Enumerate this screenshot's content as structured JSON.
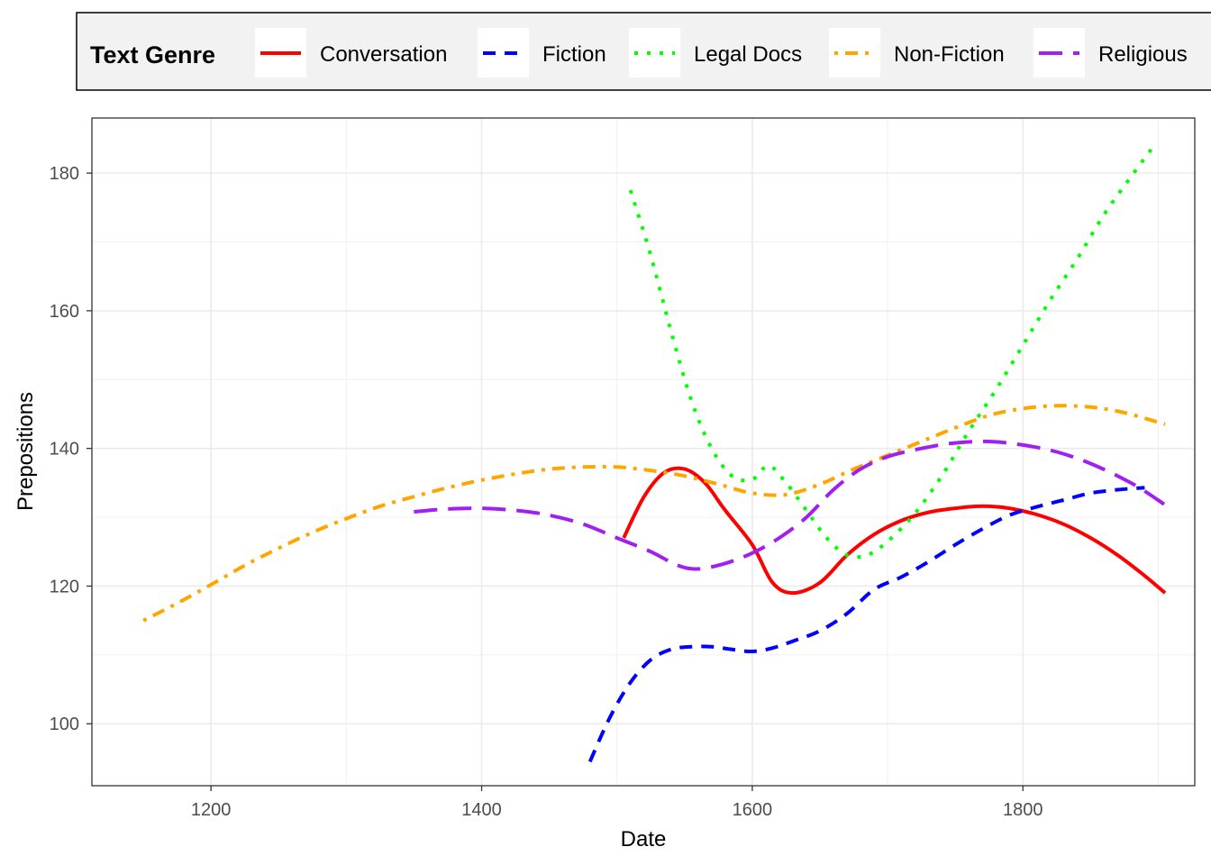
{
  "chart_data": {
    "type": "line",
    "xlabel": "Date",
    "ylabel": "Prepositions",
    "xlim": [
      1112,
      1927
    ],
    "ylim": [
      91,
      188
    ],
    "x_ticks": [
      1200,
      1400,
      1600,
      1800
    ],
    "y_ticks": [
      100,
      120,
      140,
      160,
      180
    ],
    "grid": true,
    "legend": {
      "title": "Text Genre",
      "placement": "top"
    },
    "series": [
      {
        "name": "Conversation",
        "color": "#ff0000",
        "dash": "solid",
        "points": [
          [
            1505,
            127
          ],
          [
            1520,
            133
          ],
          [
            1535,
            136.5
          ],
          [
            1550,
            137
          ],
          [
            1565,
            135
          ],
          [
            1580,
            131
          ],
          [
            1600,
            126
          ],
          [
            1615,
            120.5
          ],
          [
            1630,
            119
          ],
          [
            1650,
            120.5
          ],
          [
            1670,
            124.5
          ],
          [
            1690,
            127.5
          ],
          [
            1710,
            129.5
          ],
          [
            1730,
            130.7
          ],
          [
            1750,
            131.3
          ],
          [
            1770,
            131.6
          ],
          [
            1790,
            131.3
          ],
          [
            1810,
            130.4
          ],
          [
            1830,
            129
          ],
          [
            1850,
            127
          ],
          [
            1870,
            124.5
          ],
          [
            1890,
            121.5
          ],
          [
            1905,
            119
          ]
        ]
      },
      {
        "name": "Fiction",
        "color": "#0000ff",
        "dash": "dashed",
        "points": [
          [
            1480,
            94.5
          ],
          [
            1495,
            101
          ],
          [
            1510,
            106
          ],
          [
            1525,
            109.3
          ],
          [
            1540,
            110.8
          ],
          [
            1555,
            111.2
          ],
          [
            1570,
            111.2
          ],
          [
            1585,
            110.8
          ],
          [
            1600,
            110.5
          ],
          [
            1615,
            111
          ],
          [
            1630,
            112
          ],
          [
            1650,
            113.5
          ],
          [
            1670,
            116
          ],
          [
            1690,
            119.5
          ],
          [
            1710,
            121.3
          ],
          [
            1730,
            123.5
          ],
          [
            1750,
            126
          ],
          [
            1770,
            128.3
          ],
          [
            1790,
            130.3
          ],
          [
            1810,
            131.5
          ],
          [
            1830,
            132.5
          ],
          [
            1850,
            133.5
          ],
          [
            1870,
            134
          ],
          [
            1890,
            134.3
          ]
        ]
      },
      {
        "name": "Legal Docs",
        "color": "#00ff00",
        "dash": "dotted",
        "points": [
          [
            1510,
            177.5
          ],
          [
            1525,
            168
          ],
          [
            1540,
            157
          ],
          [
            1555,
            147
          ],
          [
            1570,
            140
          ],
          [
            1585,
            136
          ],
          [
            1600,
            135.5
          ],
          [
            1612,
            137.5
          ],
          [
            1625,
            135
          ],
          [
            1640,
            131
          ],
          [
            1655,
            127
          ],
          [
            1670,
            124.5
          ],
          [
            1685,
            124.5
          ],
          [
            1700,
            126.5
          ],
          [
            1720,
            130.5
          ],
          [
            1740,
            136
          ],
          [
            1760,
            142.5
          ],
          [
            1780,
            148.5
          ],
          [
            1800,
            155
          ],
          [
            1820,
            161.5
          ],
          [
            1840,
            167.5
          ],
          [
            1860,
            174
          ],
          [
            1880,
            179.5
          ],
          [
            1895,
            183.5
          ]
        ]
      },
      {
        "name": "Non-Fiction",
        "color": "#ffa500",
        "dash": "dotdash",
        "points": [
          [
            1150,
            115
          ],
          [
            1175,
            117.5
          ],
          [
            1200,
            120.2
          ],
          [
            1225,
            123
          ],
          [
            1250,
            125.5
          ],
          [
            1275,
            127.8
          ],
          [
            1300,
            129.8
          ],
          [
            1325,
            131.6
          ],
          [
            1350,
            133
          ],
          [
            1375,
            134.3
          ],
          [
            1400,
            135.4
          ],
          [
            1425,
            136.3
          ],
          [
            1450,
            137
          ],
          [
            1475,
            137.3
          ],
          [
            1500,
            137.3
          ],
          [
            1525,
            136.8
          ],
          [
            1550,
            136
          ],
          [
            1575,
            134.8
          ],
          [
            1600,
            133.5
          ],
          [
            1625,
            133.3
          ],
          [
            1650,
            134.8
          ],
          [
            1675,
            137
          ],
          [
            1700,
            139
          ],
          [
            1725,
            141
          ],
          [
            1750,
            143
          ],
          [
            1775,
            144.8
          ],
          [
            1800,
            145.8
          ],
          [
            1825,
            146.2
          ],
          [
            1850,
            146
          ],
          [
            1875,
            145.2
          ],
          [
            1905,
            143.5
          ]
        ]
      },
      {
        "name": "Religious",
        "color": "#a020f0",
        "dash": "longdash",
        "points": [
          [
            1350,
            130.8
          ],
          [
            1375,
            131.2
          ],
          [
            1400,
            131.3
          ],
          [
            1425,
            131
          ],
          [
            1450,
            130.3
          ],
          [
            1475,
            129
          ],
          [
            1500,
            127
          ],
          [
            1525,
            125
          ],
          [
            1545,
            123
          ],
          [
            1560,
            122.5
          ],
          [
            1580,
            123.3
          ],
          [
            1600,
            124.8
          ],
          [
            1620,
            127
          ],
          [
            1640,
            130
          ],
          [
            1660,
            134
          ],
          [
            1680,
            137
          ],
          [
            1700,
            138.8
          ],
          [
            1725,
            140
          ],
          [
            1750,
            140.8
          ],
          [
            1775,
            141
          ],
          [
            1800,
            140.5
          ],
          [
            1825,
            139.5
          ],
          [
            1850,
            137.8
          ],
          [
            1875,
            135.5
          ],
          [
            1890,
            133.8
          ],
          [
            1905,
            131.8
          ]
        ]
      }
    ]
  }
}
